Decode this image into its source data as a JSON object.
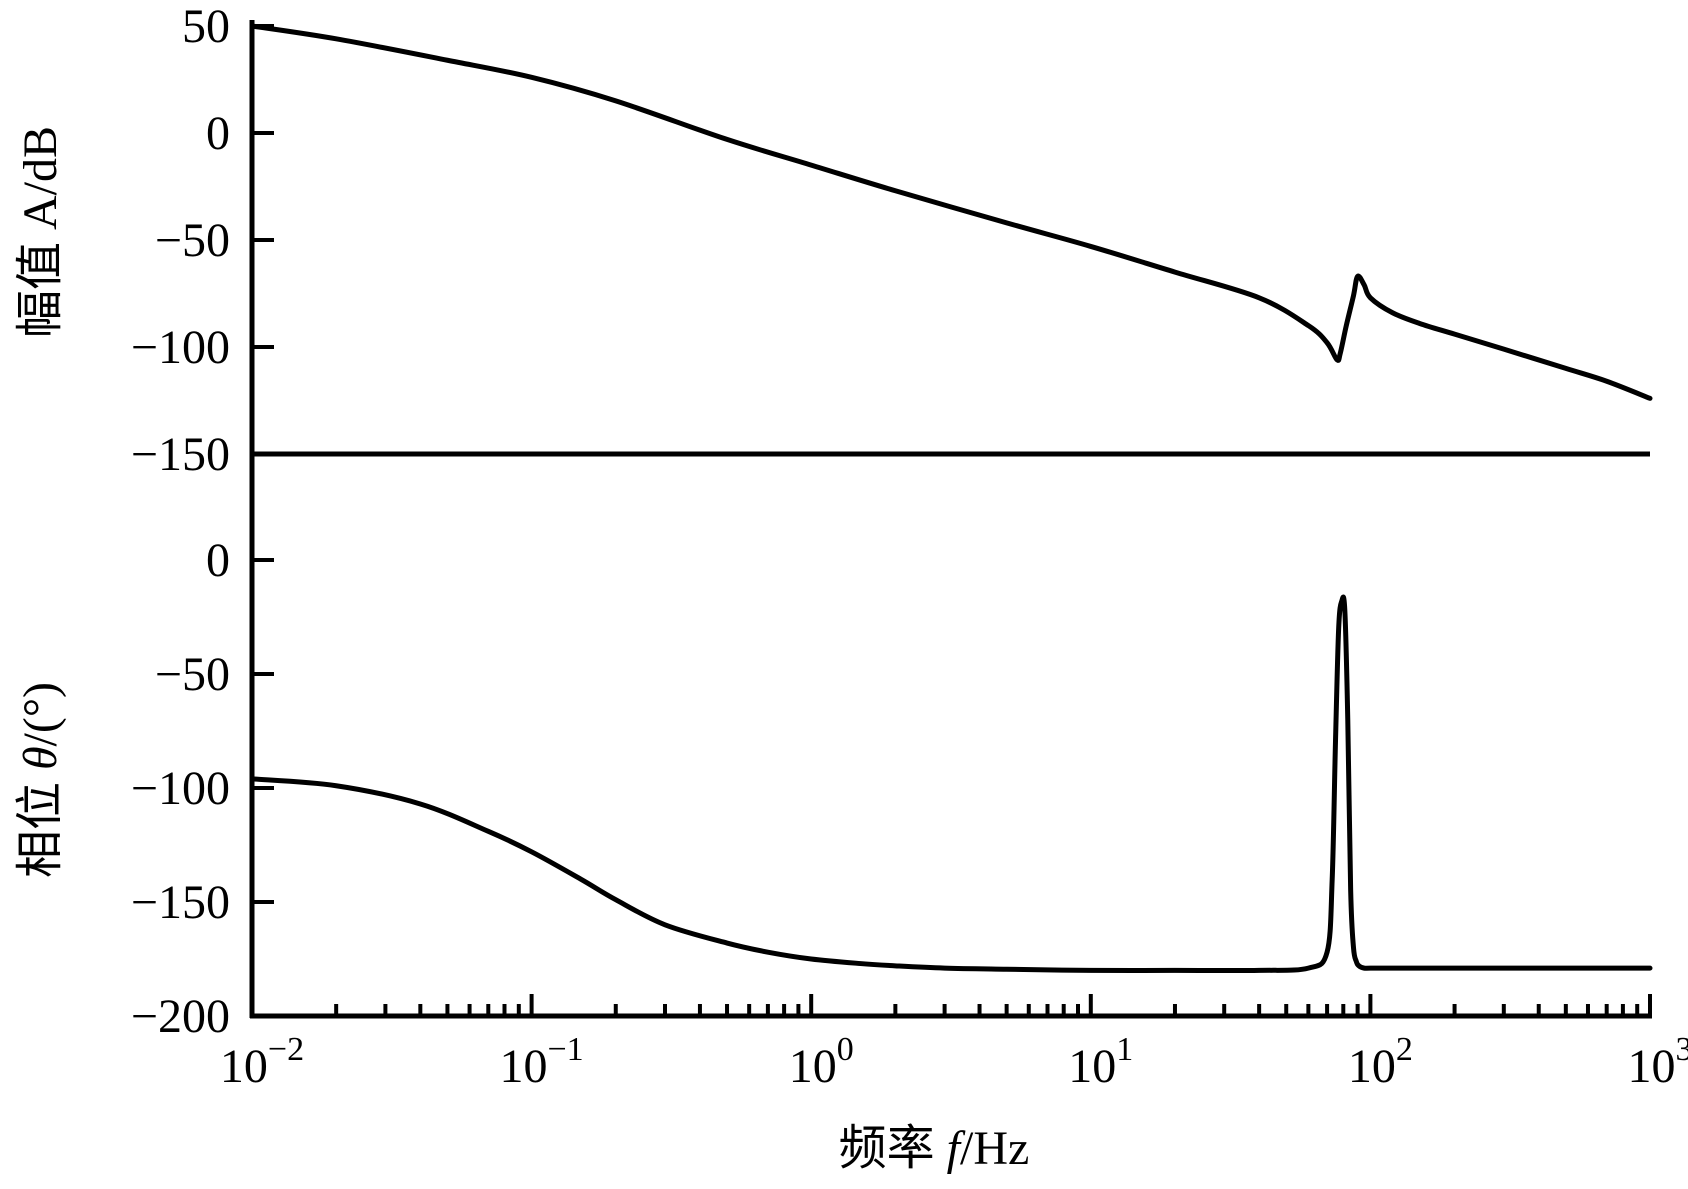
{
  "chart_data": {
    "type": "line",
    "x_scale": "log",
    "xlabel": "频率 f/Hz",
    "xlabel_prefix": "频率 ",
    "xlabel_var": "f",
    "xlabel_unit": "/Hz",
    "xlim": [
      0.01,
      1000
    ],
    "x_ticks": [
      {
        "base": "10",
        "exp": "−2",
        "value": 0.01
      },
      {
        "base": "10",
        "exp": "−1",
        "value": 0.1
      },
      {
        "base": "10",
        "exp": "0",
        "value": 1
      },
      {
        "base": "10",
        "exp": "1",
        "value": 10
      },
      {
        "base": "10",
        "exp": "2",
        "value": 100
      },
      {
        "base": "10",
        "exp": "3",
        "value": 1000
      }
    ],
    "grid": false,
    "line_color": "#000000",
    "panels": [
      {
        "name": "magnitude",
        "ylabel": "幅值 A/dB",
        "ylim": [
          -150,
          50
        ],
        "y_ticks": [
          {
            "label": "50",
            "value": 50
          },
          {
            "label": "0",
            "value": 0
          },
          {
            "label": "−50",
            "value": -50
          },
          {
            "label": "−100",
            "value": -100
          },
          {
            "label": "−150",
            "value": -150
          }
        ],
        "series": [
          {
            "x": [
              0.01,
              0.02,
              0.05,
              0.1,
              0.2,
              0.5,
              1,
              2,
              5,
              10,
              20,
              40,
              60,
              70,
              76,
              78,
              82,
              87,
              90,
              95,
              100,
              120,
              150,
              200,
              300,
              500,
              700,
              1000
            ],
            "y": [
              50,
              44,
              34,
              26,
              15,
              -3,
              -15,
              -27,
              -42,
              -53,
              -65,
              -77,
              -90,
              -98,
              -106,
              -103,
              -90,
              -76,
              -67,
              -71,
              -77,
              -84,
              -89,
              -94,
              -101,
              -110,
              -116,
              -124
            ]
          }
        ]
      },
      {
        "name": "phase",
        "ylabel_prefix": "相位 ",
        "ylabel_var": "θ",
        "ylabel_unit": "/(°)",
        "ylim": [
          -200,
          0
        ],
        "y_ticks": [
          {
            "label": "0",
            "value": 0
          },
          {
            "label": "−50",
            "value": -50
          },
          {
            "label": "−100",
            "value": -100
          },
          {
            "label": "−150",
            "value": -150
          },
          {
            "label": "−200",
            "value": -200
          }
        ],
        "series": [
          {
            "x": [
              0.01,
              0.02,
              0.04,
              0.07,
              0.1,
              0.15,
              0.2,
              0.3,
              0.5,
              0.7,
              1,
              1.5,
              2,
              3,
              5,
              10,
              20,
              40,
              60,
              70,
              73,
              75,
              77,
              79,
              81,
              83,
              85,
              87,
              89,
              91,
              95,
              100,
              120,
              200,
              500,
              1000
            ],
            "y": [
              -96,
              -99,
              -107,
              -119,
              -128,
              -140,
              -149,
              -160,
              -168,
              -172,
              -175,
              -177,
              -178,
              -179,
              -179.5,
              -180,
              -180,
              -180,
              -179,
              -172,
              -140,
              -80,
              -30,
              -18,
              -22,
              -70,
              -145,
              -170,
              -176,
              -178,
              -179,
              -179,
              -179,
              -179,
              -179,
              -179
            ]
          }
        ]
      }
    ]
  }
}
